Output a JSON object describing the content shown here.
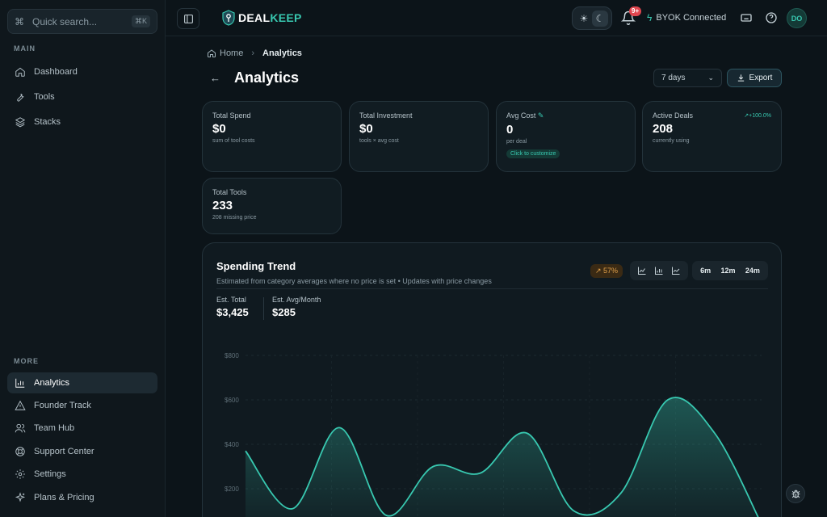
{
  "sidebar": {
    "search_placeholder": "Quick search...",
    "search_shortcut": "⌘K",
    "main_label": "MAIN",
    "main_items": [
      {
        "label": "Dashboard",
        "icon": "home-icon"
      },
      {
        "label": "Tools",
        "icon": "wrench-icon"
      },
      {
        "label": "Stacks",
        "icon": "layers-icon"
      }
    ],
    "more_label": "MORE",
    "more_items": [
      {
        "label": "Analytics",
        "icon": "bar-chart-icon",
        "active": true
      },
      {
        "label": "Founder Track",
        "icon": "warning-icon"
      },
      {
        "label": "Team Hub",
        "icon": "users-icon"
      },
      {
        "label": "Support Center",
        "icon": "lifebuoy-icon"
      },
      {
        "label": "Settings",
        "icon": "gear-icon"
      },
      {
        "label": "Plans & Pricing",
        "icon": "sparkle-icon"
      }
    ]
  },
  "header": {
    "logo_deal": "DEAL",
    "logo_keep": "KEEP",
    "notifications_badge": "9+",
    "byok_label": "BYOK Connected",
    "avatar_initials": "DO"
  },
  "breadcrumb": {
    "home": "Home",
    "current": "Analytics"
  },
  "page": {
    "title": "Analytics",
    "range_value": "7 days",
    "export_label": "Export"
  },
  "cards": [
    {
      "label": "Total Spend",
      "value": "$0",
      "sub": "sum of tool costs"
    },
    {
      "label": "Total Investment",
      "value": "$0",
      "sub": "tools × avg cost"
    },
    {
      "label": "Avg Cost",
      "value": "0",
      "sub": "per deal",
      "chip": "Click to customize"
    },
    {
      "label": "Active Deals",
      "value": "208",
      "sub": "currently using",
      "trend": "+100.0%"
    },
    {
      "label": "Total Tools",
      "value": "233",
      "sub": "208 missing price"
    }
  ],
  "spending": {
    "title": "Spending Trend",
    "subtitle": "Estimated from category averages where no price is set • Updates with price changes",
    "pct": "57%",
    "periods": [
      "6m",
      "12m",
      "24m"
    ],
    "est_total_label": "Est. Total",
    "est_total_value": "$3,425",
    "est_avg_label": "Est. Avg/Month",
    "est_avg_value": "$285"
  },
  "chart_data": {
    "type": "area",
    "y_ticks": [
      "$800",
      "$600",
      "$400",
      "$200"
    ],
    "ylim": [
      0,
      800
    ],
    "values": [
      370,
      110,
      475,
      80,
      300,
      270,
      450,
      100,
      180,
      600,
      450,
      40
    ],
    "color": "#38c8b0"
  }
}
